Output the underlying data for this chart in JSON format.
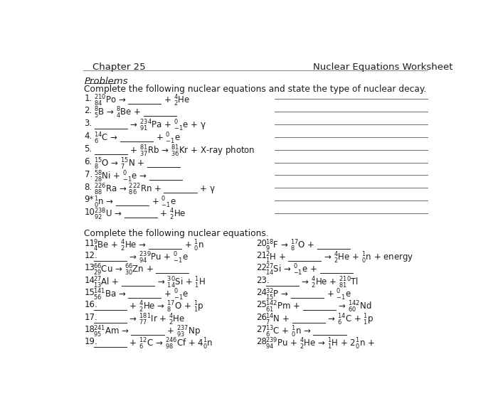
{
  "background_color": "#ffffff",
  "header_left": "Chapter 25",
  "header_right": "Nuclear Equations Worksheet",
  "section1_label": "Problems",
  "section1_subtitle": "Complete the following nuclear equations and state the type of nuclear decay.",
  "section2_label": "Complete the following nuclear equations.",
  "p1_nums": [
    "1.",
    "2.",
    "3.",
    "4.",
    "5.",
    "6.",
    "7.",
    "8.",
    "9*",
    "10."
  ],
  "p1_eqs": [
    "$\\mathregular{^{210}_{84}}$Po → ________ + $\\mathregular{^{4}_{2}}$He",
    "$\\mathregular{^{8}_{5}}$B → $\\mathregular{^{8}_{4}}$Be + ________",
    "________ → $\\mathregular{^{234}_{91}}$Pa + $\\mathregular{^{0}_{-1}}$e + γ",
    "$\\mathregular{^{14}_{6}}$C → ________ + $\\mathregular{^{0}_{-1}}$e",
    "________ + $\\mathregular{^{81}_{37}}$Rb → $\\mathregular{^{81}_{36}}$Kr + X-ray photon",
    "$\\mathregular{^{15}_{8}}$O → $\\mathregular{^{15}_{7}}$N + ________",
    "$\\mathregular{^{58}_{28}}$Ni + $\\mathregular{^{0}_{-1}}$e → ________",
    "$\\mathregular{^{226}_{88}}$Ra → $\\mathregular{^{222}_{86}}$Rn + ________ + γ",
    "$\\mathregular{^{1}_{0}}$n → ________ + $\\mathregular{^{0}_{-1}}$e",
    "$\\mathregular{^{238}_{92}}$U → ________ + $\\mathregular{^{4}_{2}}$He"
  ],
  "p2L_nums": [
    "11.",
    "12.",
    "13.",
    "14.",
    "15.",
    "16.",
    "17.",
    "18.",
    "19."
  ],
  "p2L_eqs": [
    "$\\mathregular{^{9}_{4}}$Be + $\\mathregular{^{4}_{2}}$He → ________ + $\\mathregular{^{1}_{0}}$n",
    "________ → $\\mathregular{^{239}_{94}}$Pu + $\\mathregular{^{0}_{-1}}$e",
    "$\\mathregular{^{66}_{29}}$Cu → $\\mathregular{^{66}_{30}}$Zn + ________",
    "$\\mathregular{^{27}_{13}}$Al + ________ → $\\mathregular{^{30}_{14}}$Si + $\\mathregular{^{1}_{1}}$H",
    "$\\mathregular{^{141}_{56}}$Ba → ________ + $\\mathregular{^{0}_{-1}}$e",
    "________ + $\\mathregular{^{4}_{2}}$He → $\\mathregular{^{17}_{8}}$O + $\\mathregular{^{1}_{1}}$p",
    "________ → $\\mathregular{^{181}_{77}}$Ir + $\\mathregular{^{4}_{2}}$He",
    "$\\mathregular{^{241}_{95}}$Am → ________ + $\\mathregular{^{237}_{93}}$Np",
    "________ + $\\mathregular{^{12}_{6}}$C → $\\mathregular{^{246}_{98}}$Cf + 4$\\mathregular{^{1}_{0}}$n"
  ],
  "p2R_nums": [
    "20.",
    "21.",
    "22.",
    "23.",
    "24.",
    "25.",
    "26.",
    "27.",
    "28."
  ],
  "p2R_eqs": [
    "$\\mathregular{^{18}_{9}}$F → $\\mathregular{^{17}_{8}}$O + ________",
    "$\\mathregular{^{2}_{1}}$H + ________ → $\\mathregular{^{4}_{2}}$He + $\\mathregular{^{1}_{0}}$n + energy",
    "$\\mathregular{^{27}_{14}}$Si → $\\mathregular{^{0}_{-1}}$e + ________",
    "________ → $\\mathregular{^{4}_{2}}$He + $\\mathregular{^{210}_{81}}$Tl",
    "$\\mathregular{^{32}_{15}}$P → ________ + $\\mathregular{^{0}_{-1}}$e",
    "$\\mathregular{^{142}_{61}}$Pm + ________ → $\\mathregular{^{142}_{60}}$Nd",
    "$\\mathregular{^{14}_{7}}$N + ________ → $\\mathregular{^{14}_{6}}$C + $\\mathregular{^{1}_{1}}$p",
    "$\\mathregular{^{13}_{6}}$C + $\\mathregular{^{1}_{0}}$n → ________",
    "$\\mathregular{^{239}_{94}}$Pu + $\\mathregular{^{4}_{2}}$He → $\\mathregular{^{1}_{1}}$H + 2$\\mathregular{^{1}_{0}}$n +"
  ],
  "font_color": "#1c1c1c",
  "line_color": "#555555",
  "fig_w": 7.0,
  "fig_h": 5.57,
  "dpi": 100
}
